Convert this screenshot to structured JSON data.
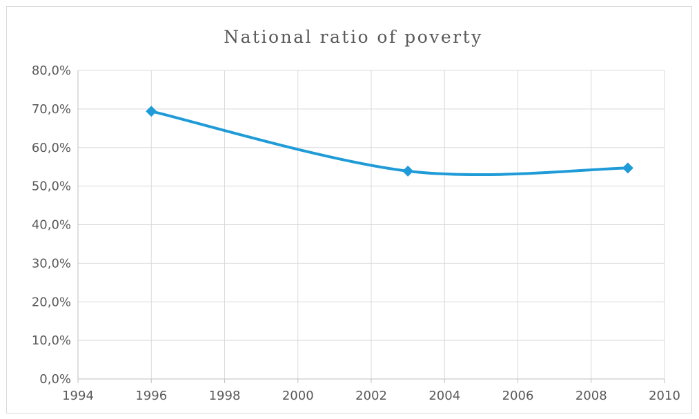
{
  "chart_data": {
    "type": "line",
    "title": "National ratio of poverty",
    "xlabel": "",
    "ylabel": "",
    "xlim": [
      1994,
      2010
    ],
    "ylim": [
      0,
      0.8
    ],
    "x_ticks": [
      1994,
      1996,
      1998,
      2000,
      2002,
      2004,
      2006,
      2008,
      2010
    ],
    "x_tick_labels": [
      "1994",
      "1996",
      "1998",
      "2000",
      "2002",
      "2004",
      "2006",
      "2008",
      "2010"
    ],
    "y_ticks": [
      0,
      0.1,
      0.2,
      0.3,
      0.4,
      0.5,
      0.6,
      0.7,
      0.8
    ],
    "y_tick_labels": [
      "0,0%",
      "10,0%",
      "20,0%",
      "30,0%",
      "40,0%",
      "50,0%",
      "60,0%",
      "70,0%",
      "80,0%"
    ],
    "grid": true,
    "legend": "none",
    "smooth": true,
    "marker": "diamond",
    "series": [
      {
        "color": "#1f9bd7",
        "x": [
          1996,
          2003,
          2009
        ],
        "values": [
          0.694,
          0.539,
          0.547
        ]
      }
    ]
  }
}
